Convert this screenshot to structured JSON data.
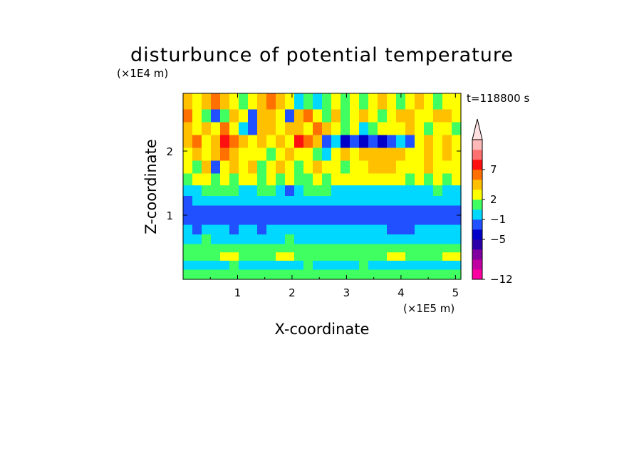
{
  "chart_data": {
    "type": "heatmap",
    "title": "disturbunce of potential temperature",
    "xlabel": "X-coordinate",
    "ylabel": "Z-coordinate",
    "x_unit": "(×1E5 m)",
    "y_unit": "(×1E4 m)",
    "time_label": "t=118800 s",
    "xlim": [
      0,
      5.1
    ],
    "ylim": [
      0,
      2.9
    ],
    "x_ticks": [
      {
        "value": 1,
        "label": "1"
      },
      {
        "value": 2,
        "label": "2"
      },
      {
        "value": 3,
        "label": "3"
      },
      {
        "value": 4,
        "label": "4"
      },
      {
        "value": 5,
        "label": "5"
      }
    ],
    "y_ticks": [
      {
        "value": 1,
        "label": "1"
      },
      {
        "value": 2,
        "label": "2"
      }
    ],
    "colorbar": {
      "colors": [
        "#ff00a0",
        "#c000a0",
        "#8000a0",
        "#2b00a8",
        "#0000c8",
        "#2050ff",
        "#00d8ff",
        "#40ff60",
        "#ffff00",
        "#ffc000",
        "#ff7000",
        "#ff1010",
        "#ff7070",
        "#ffb8b8"
      ],
      "over_color": "#ffe0e0",
      "labels": [
        {
          "value": -12,
          "label": "−12"
        },
        {
          "value": -5,
          "label": "−5"
        },
        {
          "value": -1,
          "label": "−1"
        },
        {
          "value": 2,
          "label": "2"
        },
        {
          "value": 7,
          "label": "7"
        }
      ],
      "label_positions": [
        0,
        4,
        6,
        8,
        11
      ]
    },
    "z_rows": [
      [
        2.75,
        [
          9,
          8,
          9,
          10,
          9,
          8,
          7,
          8,
          9,
          10,
          9,
          8,
          6,
          7,
          6,
          7,
          8,
          7,
          8,
          7,
          8,
          9,
          8,
          7,
          8,
          9,
          8,
          7,
          8,
          8
        ]
      ],
      [
        2.55,
        [
          10,
          8,
          7,
          5,
          7,
          9,
          8,
          5,
          9,
          9,
          8,
          5,
          9,
          10,
          8,
          7,
          9,
          7,
          8,
          9,
          8,
          7,
          8,
          9,
          9,
          8,
          8,
          9,
          9,
          8
        ]
      ],
      [
        2.35,
        [
          9,
          8,
          9,
          8,
          10,
          8,
          6,
          5,
          9,
          9,
          8,
          9,
          9,
          8,
          10,
          9,
          8,
          7,
          8,
          6,
          7,
          8,
          8,
          8,
          9,
          8,
          7,
          8,
          8,
          7
        ]
      ],
      [
        2.15,
        [
          9,
          10,
          8,
          9,
          11,
          10,
          9,
          8,
          9,
          8,
          9,
          8,
          11,
          10,
          9,
          5,
          6,
          4,
          5,
          4,
          5,
          4,
          5,
          6,
          5,
          8,
          9,
          8,
          9,
          8
        ]
      ],
      [
        1.95,
        [
          8,
          9,
          8,
          9,
          10,
          9,
          8,
          8,
          8,
          7,
          8,
          9,
          8,
          8,
          7,
          6,
          8,
          9,
          8,
          9,
          9,
          9,
          9,
          9,
          8,
          8,
          9,
          8,
          9,
          8
        ]
      ],
      [
        1.75,
        [
          8,
          7,
          9,
          5,
          8,
          9,
          8,
          9,
          7,
          8,
          9,
          8,
          7,
          8,
          9,
          8,
          8,
          7,
          8,
          8,
          9,
          9,
          9,
          8,
          8,
          8,
          9,
          8,
          8,
          8
        ]
      ],
      [
        1.55,
        [
          7,
          8,
          8,
          7,
          8,
          7,
          8,
          8,
          7,
          8,
          7,
          8,
          7,
          7,
          8,
          7,
          8,
          8,
          8,
          8,
          8,
          8,
          8,
          8,
          7,
          8,
          7,
          8,
          7,
          8
        ]
      ],
      [
        1.38,
        [
          6,
          6,
          7,
          7,
          7,
          7,
          6,
          6,
          7,
          7,
          6,
          5,
          6,
          7,
          7,
          7,
          6,
          6,
          6,
          6,
          6,
          6,
          6,
          6,
          6,
          6,
          6,
          7,
          6,
          6
        ]
      ],
      [
        1.22,
        [
          5,
          6,
          6,
          6,
          6,
          6,
          6,
          6,
          6,
          6,
          6,
          6,
          6,
          6,
          6,
          6,
          6,
          6,
          6,
          6,
          6,
          6,
          6,
          6,
          6,
          6,
          6,
          6,
          6,
          6
        ]
      ],
      [
        1.08,
        [
          5,
          5,
          5,
          5,
          5,
          5,
          5,
          5,
          5,
          5,
          5,
          5,
          5,
          5,
          5,
          5,
          5,
          5,
          5,
          5,
          5,
          5,
          5,
          5,
          5,
          5,
          5,
          5,
          5,
          5
        ]
      ],
      [
        0.92,
        [
          5,
          5,
          5,
          5,
          5,
          5,
          5,
          5,
          5,
          5,
          5,
          5,
          5,
          5,
          5,
          5,
          5,
          5,
          5,
          5,
          5,
          5,
          5,
          5,
          5,
          5,
          5,
          5,
          5,
          5
        ]
      ],
      [
        0.78,
        [
          6,
          5,
          6,
          6,
          6,
          5,
          6,
          6,
          5,
          6,
          6,
          6,
          6,
          6,
          6,
          6,
          6,
          6,
          6,
          6,
          6,
          6,
          5,
          5,
          5,
          6,
          6,
          6,
          6,
          6
        ]
      ],
      [
        0.62,
        [
          6,
          6,
          7,
          6,
          6,
          6,
          6,
          6,
          6,
          6,
          6,
          7,
          6,
          6,
          6,
          6,
          6,
          6,
          6,
          6,
          6,
          6,
          6,
          6,
          6,
          6,
          6,
          6,
          6,
          6
        ]
      ],
      [
        0.48,
        [
          7,
          7,
          7,
          7,
          7,
          7,
          7,
          7,
          7,
          7,
          7,
          7,
          7,
          7,
          7,
          7,
          7,
          7,
          7,
          7,
          7,
          7,
          7,
          7,
          7,
          7,
          7,
          7,
          7,
          7
        ]
      ],
      [
        0.36,
        [
          7,
          7,
          7,
          7,
          8,
          8,
          7,
          7,
          7,
          7,
          8,
          8,
          7,
          7,
          7,
          7,
          7,
          7,
          7,
          7,
          7,
          7,
          8,
          8,
          7,
          7,
          7,
          7,
          8,
          8
        ]
      ],
      [
        0.22,
        [
          6,
          6,
          6,
          6,
          6,
          7,
          6,
          6,
          6,
          6,
          6,
          6,
          6,
          7,
          6,
          6,
          6,
          6,
          6,
          7,
          6,
          6,
          6,
          6,
          6,
          6,
          6,
          6,
          6,
          6
        ]
      ],
      [
        0.08,
        [
          7,
          7,
          7,
          7,
          7,
          7,
          7,
          7,
          7,
          7,
          7,
          7,
          7,
          7,
          7,
          7,
          7,
          7,
          7,
          7,
          7,
          7,
          7,
          7,
          7,
          7,
          7,
          7,
          7,
          7
        ]
      ]
    ]
  }
}
